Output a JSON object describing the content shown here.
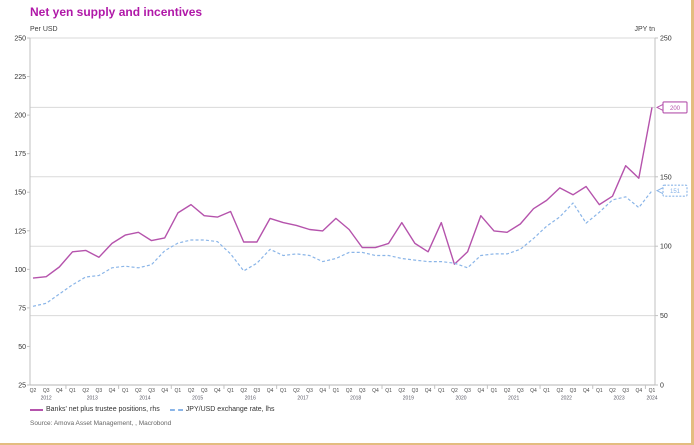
{
  "title": "Net yen supply and incentives",
  "left_axis": {
    "unit": "Per USD",
    "min": 25,
    "max": 250,
    "tick_labels": [
      250,
      225,
      200,
      175,
      150,
      125,
      100,
      75,
      50,
      25
    ]
  },
  "right_axis": {
    "unit": "JPY tn",
    "min": 0,
    "max": 250,
    "tick_labels": [
      250,
      150,
      100,
      50,
      0
    ],
    "gridline_values": [
      250,
      200,
      150,
      100,
      50
    ]
  },
  "callouts": [
    {
      "series": "banks",
      "label": "200",
      "axis": "right",
      "value": 200,
      "color": "#b553ac",
      "border_style": "solid"
    },
    {
      "series": "fx",
      "label": "151",
      "axis": "left",
      "value": 151,
      "color": "#8ab5e8",
      "border_style": "dashed"
    }
  ],
  "legend": [
    {
      "label": "Banks' net plus trustee positions, rhs",
      "color": "#b553ac",
      "style": "solid"
    },
    {
      "label": "JPY/USD exchange rate, lhs",
      "color": "#8ab5e8",
      "style": "dashed"
    }
  ],
  "source": "Source: Amova Asset Management, , Macrobond",
  "colors": {
    "title": "#b018a8",
    "banks_line": "#b553ac",
    "fx_line": "#8ab5e8",
    "gridline": "#dadada",
    "axis_line": "#c2c2c2",
    "tick_text": "#333333",
    "year_text": "#5a5a66",
    "page_border": "#e3bd80"
  },
  "chart_data": {
    "type": "line",
    "title": "Net yen supply and incentives",
    "x_tick_style": "quarter labels with year labels centered under each year group",
    "categories": [
      "Q2 2012",
      "Q3 2012",
      "Q4 2012",
      "Q1 2013",
      "Q2 2013",
      "Q3 2013",
      "Q4 2013",
      "Q1 2014",
      "Q2 2014",
      "Q3 2014",
      "Q4 2014",
      "Q1 2015",
      "Q2 2015",
      "Q3 2015",
      "Q4 2015",
      "Q1 2016",
      "Q2 2016",
      "Q3 2016",
      "Q4 2016",
      "Q1 2017",
      "Q2 2017",
      "Q3 2017",
      "Q4 2017",
      "Q1 2018",
      "Q2 2018",
      "Q3 2018",
      "Q4 2018",
      "Q1 2019",
      "Q2 2019",
      "Q3 2019",
      "Q4 2019",
      "Q1 2020",
      "Q2 2020",
      "Q3 2020",
      "Q4 2020",
      "Q1 2021",
      "Q2 2021",
      "Q3 2021",
      "Q4 2021",
      "Q1 2022",
      "Q2 2022",
      "Q3 2022",
      "Q4 2022",
      "Q1 2023",
      "Q2 2023",
      "Q3 2023",
      "Q4 2023",
      "Q1 2024"
    ],
    "series": [
      {
        "name": "Banks' net plus trustee positions, rhs",
        "axis": "right",
        "style": "solid",
        "color": "#b553ac",
        "values": [
          77,
          78,
          85,
          96,
          97,
          92,
          102,
          108,
          110,
          104,
          106,
          124,
          130,
          122,
          121,
          125,
          103,
          103,
          120,
          117,
          115,
          112,
          111,
          120,
          112,
          99,
          99,
          102,
          117,
          102,
          96,
          117,
          87,
          96,
          122,
          111,
          110,
          116,
          127,
          133,
          142,
          137,
          143,
          130,
          136,
          158,
          149,
          200
        ]
      },
      {
        "name": "JPY/USD exchange rate, lhs",
        "axis": "left",
        "style": "dashed",
        "color": "#8ab5e8",
        "values": [
          76,
          78,
          84,
          90,
          95,
          96,
          101,
          102,
          101,
          103,
          112,
          117,
          119,
          119,
          118,
          110,
          99,
          104,
          113,
          109,
          110,
          109,
          105,
          107,
          111,
          111,
          109,
          109,
          107,
          106,
          105,
          105,
          104,
          101,
          109,
          110,
          110,
          113,
          120,
          128,
          134,
          143,
          130,
          137,
          145,
          147,
          140,
          151
        ]
      }
    ],
    "left_ylim": [
      25,
      250
    ],
    "right_ylim": [
      0,
      250
    ],
    "grid": "horizontal, every 50 units of right axis",
    "legend_position": "bottom-left"
  }
}
